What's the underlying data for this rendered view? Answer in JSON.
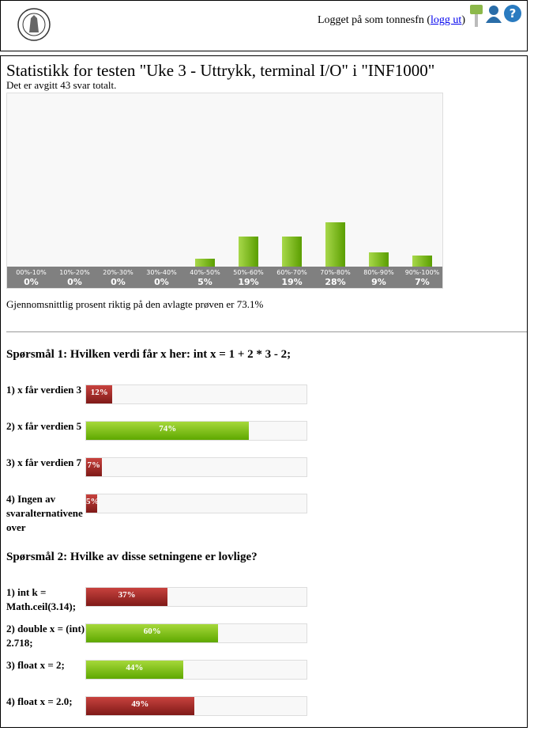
{
  "header": {
    "login_prefix": "Logget på som tonnesfn (",
    "logout": "logg ut",
    "login_suffix": ")"
  },
  "title": "Statistikk for testen \"Uke 3 - Uttrykk, terminal I/O\" i \"INF1000\"",
  "summary": "Det er avgitt 43 svar totalt.",
  "histogram": {
    "bins": [
      "00%-10%",
      "10%-20%",
      "20%-30%",
      "30%-40%",
      "40%-50%",
      "50%-60%",
      "60%-70%",
      "70%-80%",
      "80%-90%",
      "90%-100%"
    ],
    "values": [
      0,
      0,
      0,
      0,
      5,
      19,
      19,
      28,
      9,
      7
    ],
    "value_labels": [
      "0%",
      "0%",
      "0%",
      "0%",
      "5%",
      "19%",
      "19%",
      "28%",
      "9%",
      "7%"
    ]
  },
  "average": "Gjennomsnittlig prosent riktig på den avlagte prøven er 73.1%",
  "questions": [
    {
      "title": "Spørsmål 1: Hvilken verdi får x her: int x = 1 + 2 * 3 - 2;",
      "options": [
        {
          "label": "1) x får verdien 3",
          "value": 12,
          "value_label": "12%",
          "correct": false
        },
        {
          "label": "2) x får verdien 5",
          "value": 74,
          "value_label": "74%",
          "correct": true
        },
        {
          "label": "3) x får verdien 7",
          "value": 7,
          "value_label": "7%",
          "correct": false
        },
        {
          "label": "4) Ingen av svaralternativene over",
          "value": 5,
          "value_label": "5%",
          "correct": false
        }
      ]
    },
    {
      "title": "Spørsmål 2: Hvilke av disse setningene er lovlige?",
      "options": [
        {
          "label": "1) int k = Math.ceil(3.14);",
          "value": 37,
          "value_label": "37%",
          "correct": false
        },
        {
          "label": "2) double x = (int) 2.718;",
          "value": 60,
          "value_label": "60%",
          "correct": true
        },
        {
          "label": "3) float x = 2;",
          "value": 44,
          "value_label": "44%",
          "correct": true
        },
        {
          "label": "4) float x = 2.0;",
          "value": 49,
          "value_label": "49%",
          "correct": false
        }
      ]
    }
  ]
}
